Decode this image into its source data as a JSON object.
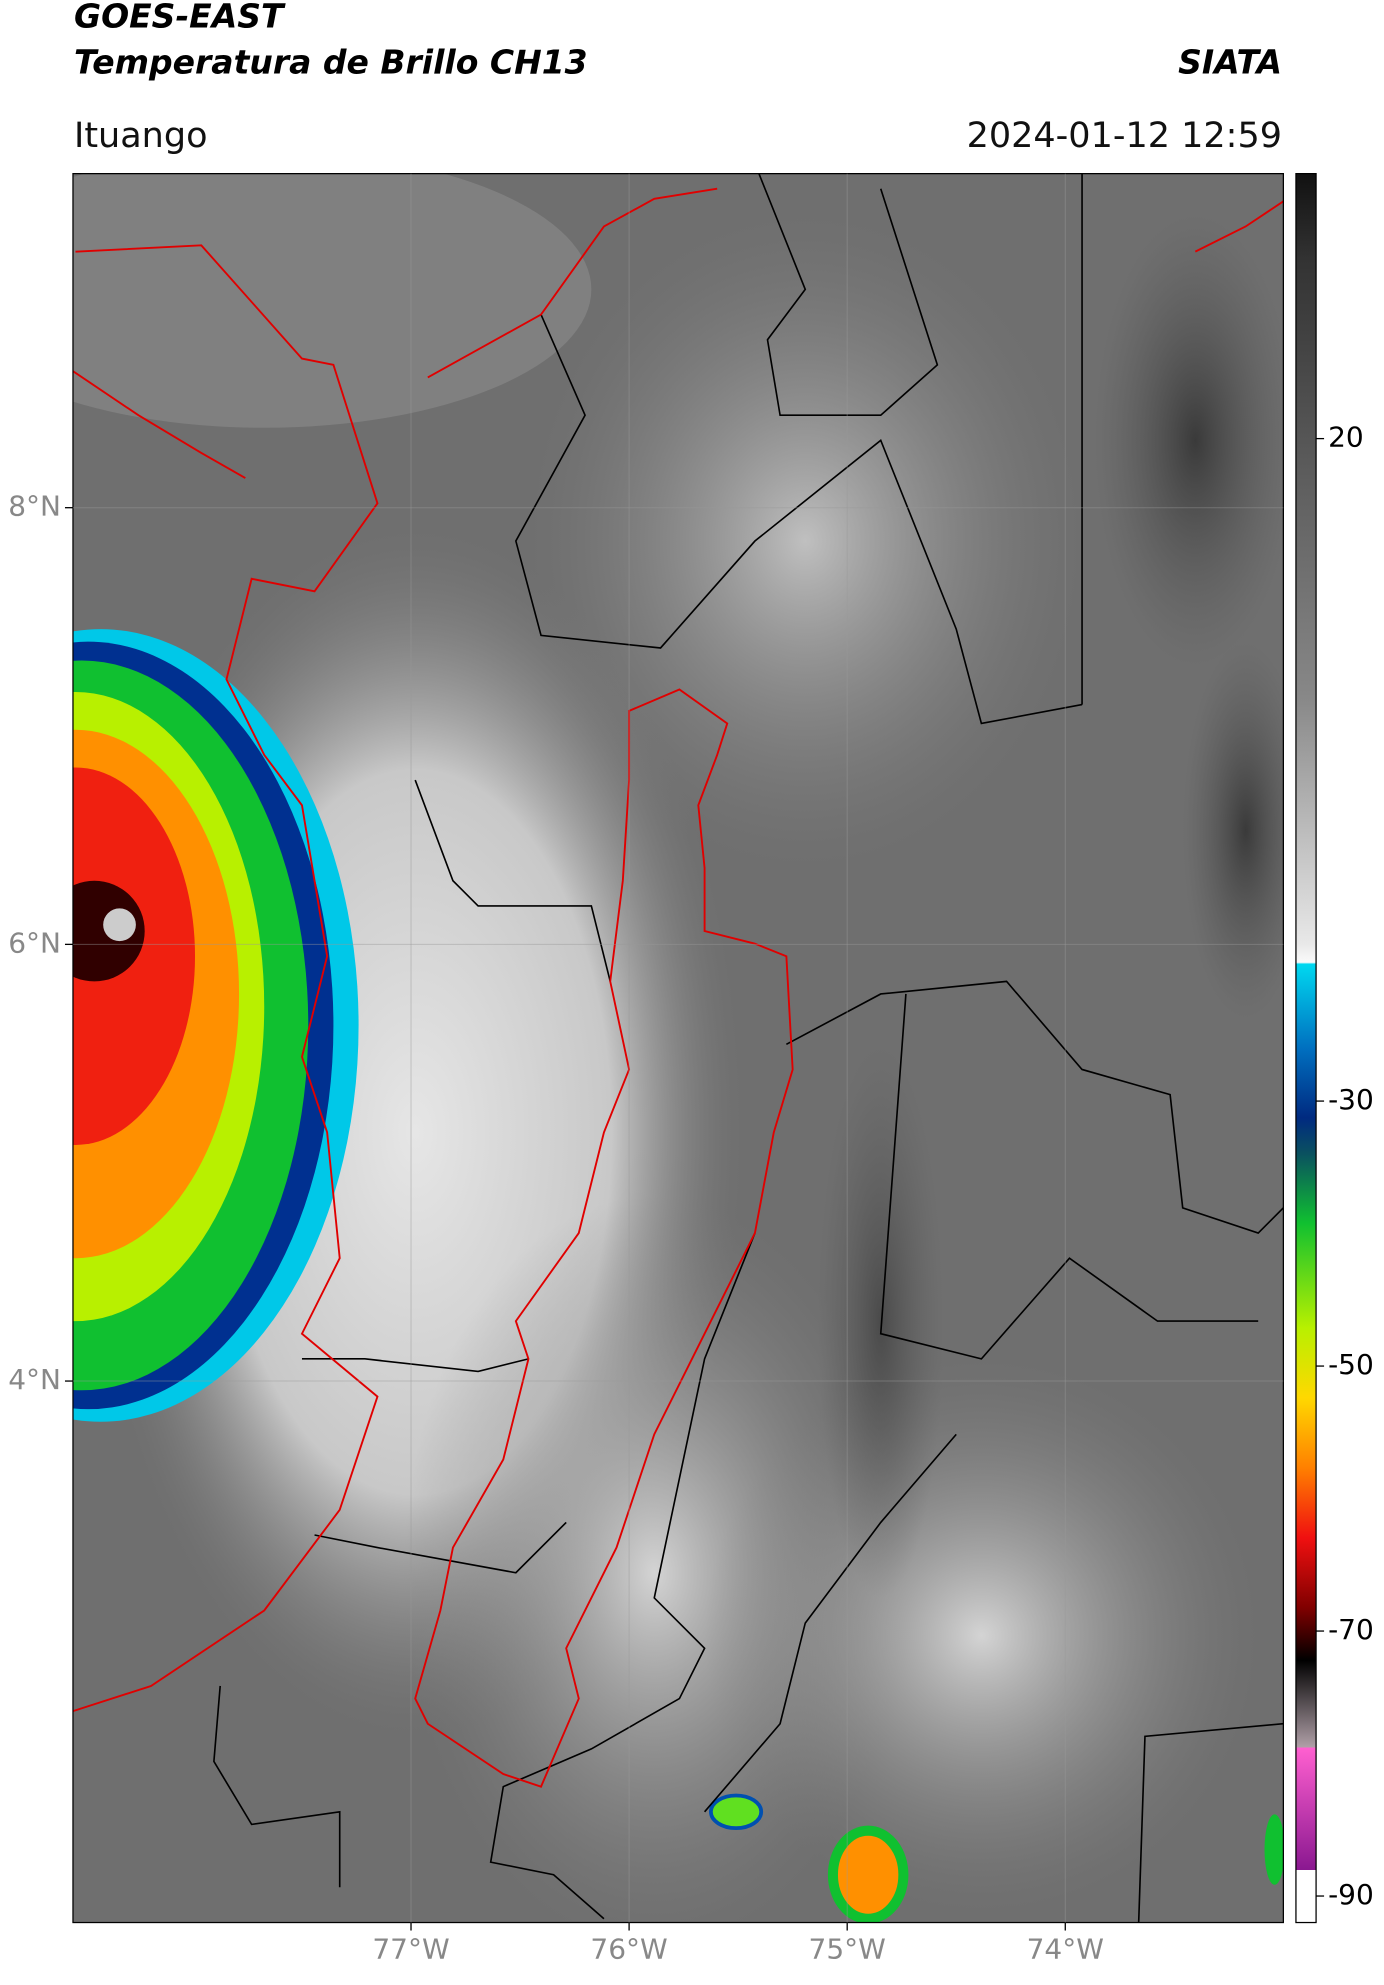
{
  "header": {
    "title": "GOES-EAST",
    "subtitle": "Temperatura de Brillo CH13",
    "brand": "SIATA",
    "location": "Ituango",
    "datetime": "2024-01-12 12:59"
  },
  "map": {
    "xlim": [
      -78.55,
      -73.0
    ],
    "ylim": [
      1.52,
      9.53
    ],
    "xticks": [
      {
        "value": -77,
        "label": "77°W"
      },
      {
        "value": -76,
        "label": "76°W"
      },
      {
        "value": -75,
        "label": "75°W"
      },
      {
        "value": -74,
        "label": "74°W"
      }
    ],
    "yticks": [
      {
        "value": 8,
        "label": "8°N"
      },
      {
        "value": 6,
        "label": "6°N"
      },
      {
        "value": 4,
        "label": "4°N"
      }
    ],
    "grid": true
  },
  "colorbar": {
    "lim": [
      -92,
      40
    ],
    "ticks": [
      20,
      -30,
      -50,
      -70,
      -90
    ]
  }
}
